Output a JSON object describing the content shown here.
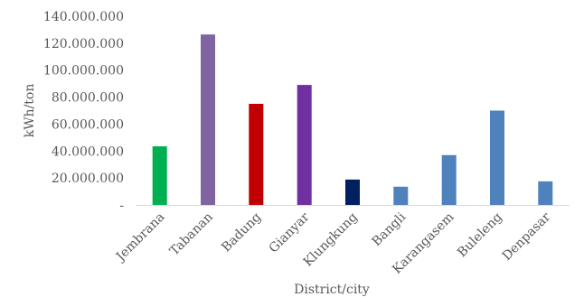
{
  "chart_data": {
    "type": "bar",
    "title": "",
    "xlabel": "District/city",
    "ylabel": "kWh/ton",
    "ylim": [
      0,
      140000000
    ],
    "ytick_step": 20000000,
    "ytick_labels": [
      "-",
      "20.000.000",
      "40.000.000",
      "60.000.000",
      "80.000.000",
      "100.000.000",
      "120.000.000",
      "140.000.000"
    ],
    "grid": false,
    "legend": "none",
    "categories": [
      "Jembrana",
      "Tabanan",
      "Badung",
      "Gianyar",
      "Klungkung",
      "Bangli",
      "Karangasem",
      "Buleleng",
      "Denpasar"
    ],
    "values": [
      43500000,
      126500000,
      75000000,
      89000000,
      18800000,
      13500000,
      37000000,
      70000000,
      17500000
    ],
    "colors": [
      "#00b050",
      "#8064a2",
      "#c00000",
      "#7030a0",
      "#002060",
      "#4f81bd",
      "#4f81bd",
      "#4f81bd",
      "#4f81bd"
    ]
  }
}
